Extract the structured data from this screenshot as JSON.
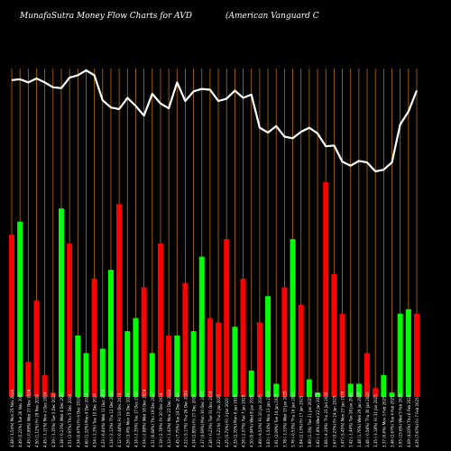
{
  "header": {
    "title": "MunafaSutra  Money Flow  Charts for AVD",
    "company": "(American  Vanguard C"
  },
  "colors": {
    "background": "#000000",
    "gridline": "#b8700a",
    "up": "#00ff00",
    "down": "#ff0000",
    "line": "#ffffff",
    "axis_text": "#ffffff"
  },
  "chart_data": {
    "type": "bar",
    "title": "MunafaSutra  Money Flow  Charts for AVD",
    "categories": [
      "Fri 7 Feb 2025",
      "Thu 6 Feb 2025",
      "Wed 5 Feb 2025",
      "Tue 4 Feb 2025",
      "Mon 3 Feb 2025",
      "Fri 31 Jan 2025",
      "Thu 30 Jan 2025",
      "Wed 29 Jan 2025",
      "Tue 28 Jan 2025",
      "Mon 27 Jan 2025",
      "Fri 24 Jan 2025",
      "Thu 23 Jan 2025",
      "Wed 22 Jan 2025",
      "Tue 21 Jan 2025",
      "Fri 17 Jan 2025",
      "Thu 16 Jan 2025",
      "Wed 15 Jan 2025",
      "Tue 14 Jan 2025",
      "Mon 13 Jan 2025",
      "Fri 10 Jan 2025",
      "Wed 8 Jan 2025",
      "Tue 7 Jan 2025",
      "Mon 6 Jan 2025",
      "Fri 3 Jan 2025",
      "Thu 2 Jan 2025",
      "Tue 31 Dec 2024",
      "Mon 30 Dec 2024",
      "Fri 27 Dec 2024",
      "Thu 26 Dec 2024",
      "Tue 24 Dec 2024",
      "Mon 23 Dec 2024",
      "Fri 20 Dec 2024",
      "Thu 19 Dec 2024",
      "Wed 18 Dec 2024",
      "Tue 17 Dec 2024",
      "Mon 16 Dec 2024",
      "Fri 13 Dec 2024",
      "Thu 12 Dec 2024",
      "Wed 11 Dec 2024",
      "Tue 10 Dec 2024",
      "Mon 9 Dec 2024",
      "Fri 6 Dec 2024",
      "Thu 5 Dec 2024",
      "Wed 4 Dec 2024",
      "Tue 3 Dec 2024",
      "Mon 2 Dec 2024",
      "Fri 29 Nov 2024",
      "Wed 27 Nov 2024",
      "Tue 26 Nov 2024",
      "Mon 25 Nov 2024"
    ],
    "tick_labels": [
      "4.35 (7.67%)",
      "4.09 (4.03%)",
      "3.93 (13.6%)",
      "3.46 (2.67%)",
      "3.37 (0.6%)",
      "3.35 (-3.18%)",
      "3.46 (-0.58%)",
      "3.48 (1.76%)",
      "3.42 (-1.44%)",
      "3.47 (-5.45%)",
      "3.67 (0.27%)",
      "3.66 (-4.19%)",
      "3.82 (-1.8%)",
      "3.89 (1.3%)",
      "3.84 (2.13%)",
      "3.76 (-0.53%)",
      "3.78 (-3.33%)",
      "3.91 (2.09%)",
      "3.83 (-1.54%)",
      "3.89 (-9.53%)",
      "4.30 (0.94%)",
      "4.26 (-2.07%)",
      "4.35 (2.35%)",
      "4.25 (0.71%)",
      "4.22 (-3.21%)",
      "4.36 (-0.23%)",
      "4.37 (0.69%)",
      "4.34 (2.85%)",
      "4.22 (-5.17%)",
      "4.45 (7.75%)",
      "4.13 (-1.43%)",
      "4.19 (-2.78%)",
      "4.31 (6.68%)",
      "4.04 (-2.88%)",
      "4.16 (-2.35%)",
      "4.26 (3.4%)",
      "4.12 (-0.48%)",
      "4.14 (-2.13%)",
      "4.23 (-6.84%)",
      "4.54 (-1.3%)",
      "4.60 (1.32%)",
      "4.54 (0.67%)",
      "4.51 (2.97%)",
      "4.38 (-0.23%)",
      "4.39 (-1.35%)",
      "4.45 (-1.11%)",
      "4.50 (1.12%)",
      "4.45 (-0.89%)",
      "4.49 (0.22%)",
      "4.48 (-1.54%)"
    ],
    "series": [
      {
        "type": "bar",
        "values": [
          19,
          20,
          19,
          1,
          5,
          2,
          10,
          3,
          3,
          19,
          28,
          49,
          1,
          4,
          21,
          36,
          25,
          3,
          23,
          17,
          6,
          27,
          16,
          36,
          17,
          18,
          32,
          15,
          26,
          14,
          14,
          35,
          10,
          25,
          18,
          15,
          44,
          29,
          11,
          27,
          10,
          14,
          35,
          43,
          1,
          5,
          22,
          8,
          40,
          37
        ],
        "direction": [
          "down",
          "up",
          "up",
          "up",
          "up",
          "down",
          "down",
          "up",
          "up",
          "down",
          "down",
          "down",
          "up",
          "up",
          "down",
          "up",
          "down",
          "up",
          "up",
          "down",
          "up",
          "down",
          "up",
          "down",
          "down",
          "down",
          "up",
          "up",
          "down",
          "up",
          "down",
          "down",
          "up",
          "down",
          "up",
          "up",
          "down",
          "up",
          "up",
          "down",
          "up",
          "up",
          "down",
          "up",
          "down",
          "down",
          "down",
          "down",
          "up",
          "down"
        ]
      },
      {
        "type": "line",
        "values": [
          4.35,
          4.09,
          3.93,
          3.46,
          3.37,
          3.35,
          3.46,
          3.48,
          3.42,
          3.47,
          3.67,
          3.66,
          3.82,
          3.89,
          3.84,
          3.76,
          3.78,
          3.91,
          3.83,
          3.89,
          4.3,
          4.26,
          4.35,
          4.25,
          4.22,
          4.36,
          4.37,
          4.34,
          4.22,
          4.45,
          4.13,
          4.19,
          4.31,
          4.04,
          4.16,
          4.26,
          4.12,
          4.14,
          4.23,
          4.54,
          4.6,
          4.54,
          4.51,
          4.38,
          4.39,
          4.45,
          4.5,
          4.45,
          4.49,
          4.48
        ]
      }
    ],
    "grid": true,
    "order": "newest-first"
  }
}
